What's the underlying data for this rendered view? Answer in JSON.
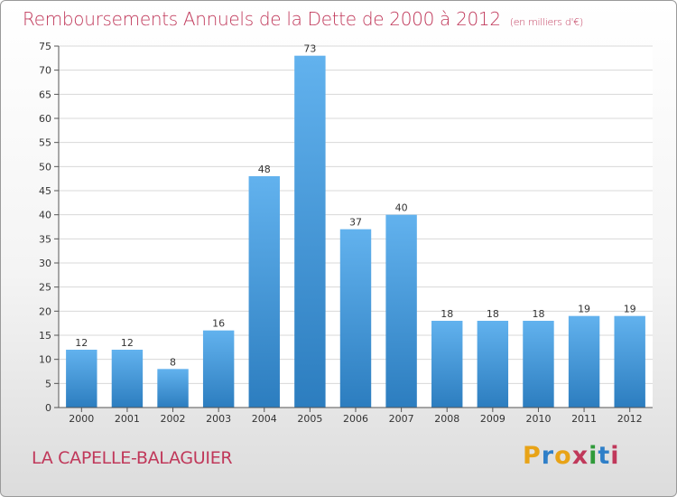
{
  "header": {
    "title": "Remboursements Annuels de la Dette de 2000 à 2012",
    "unit": "(en milliers d'€)"
  },
  "footer": {
    "commune": "LA CAPELLE-BALAGUIER",
    "logo": {
      "letters": [
        "P",
        "r",
        "o",
        "x",
        "i",
        "t",
        "i"
      ],
      "colors": [
        "#e8a317",
        "#2f7fc8",
        "#e8a317",
        "#c0385a",
        "#2f9a3a",
        "#2f7fc8",
        "#c0385a"
      ]
    }
  },
  "colors": {
    "bar_light": "#62b2ee",
    "bar_dark": "#2c7dbf",
    "grid": "#d8d8d8",
    "title": "#c0385a"
  },
  "chart_data": {
    "type": "bar",
    "categories": [
      "2000",
      "2001",
      "2002",
      "2003",
      "2004",
      "2005",
      "2006",
      "2007",
      "2008",
      "2009",
      "2010",
      "2011",
      "2012"
    ],
    "values": [
      12,
      12,
      8,
      16,
      48,
      73,
      37,
      40,
      18,
      18,
      18,
      19,
      19
    ],
    "data_labels": [
      "12",
      "12",
      "8",
      "16",
      "48",
      "73",
      "37",
      "40",
      "18",
      "18",
      "18",
      "19",
      "19"
    ],
    "yticks": [
      0,
      5,
      10,
      15,
      20,
      25,
      30,
      35,
      40,
      45,
      50,
      55,
      60,
      65,
      70,
      75
    ],
    "ylim": [
      0,
      75
    ],
    "grid": true
  }
}
